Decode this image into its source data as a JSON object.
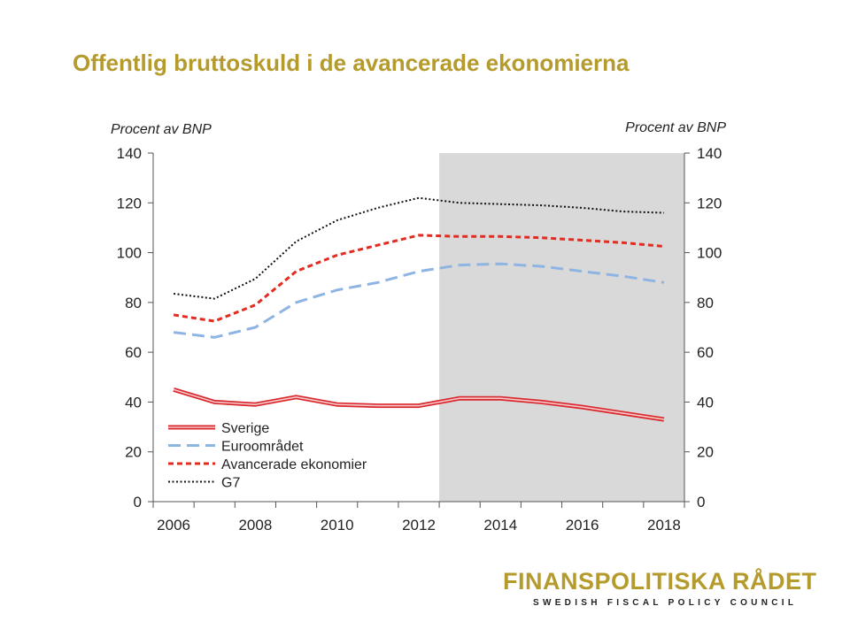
{
  "slide": {
    "title": "Offentlig bruttoskuld i de avancerade ekonomierna"
  },
  "logo": {
    "name": "FINANSPOLITISKA RÅDET",
    "subtitle": "SWEDISH FISCAL POLICY COUNCIL"
  },
  "colors": {
    "title": "#b59a2c",
    "forecast_shade": "#d9d9d9",
    "sverige": "#d9282e",
    "euro": "#8eb4e3",
    "advanced": "#e32b20",
    "g7": "#111111"
  },
  "chart_data": {
    "type": "line",
    "title": "",
    "ylabel_left": "Procent av BNP",
    "ylabel_right": "Procent av BNP",
    "ylim": [
      0,
      140
    ],
    "yticks": [
      0,
      20,
      40,
      60,
      80,
      100,
      120,
      140
    ],
    "x": [
      2006,
      2007,
      2008,
      2009,
      2010,
      2011,
      2012,
      2013,
      2014,
      2015,
      2016,
      2017,
      2018
    ],
    "xticks": [
      "2006",
      "2008",
      "2010",
      "2012",
      "2014",
      "2016",
      "2018"
    ],
    "forecast_shading": {
      "from": 2012.5,
      "to": 2018.5
    },
    "legend_position": "lower-left",
    "series": [
      {
        "name": "Sverige",
        "style": "double-solid",
        "color_key": "sverige",
        "values": [
          45,
          40,
          39,
          42,
          39,
          38.5,
          38.5,
          41.5,
          41.5,
          40,
          38,
          35.5,
          33
        ]
      },
      {
        "name": "Euroområdet",
        "style": "long-dash",
        "color_key": "euro",
        "values": [
          68,
          66,
          70,
          80,
          85,
          88,
          92.5,
          95,
          95.5,
          94.5,
          92.5,
          90.5,
          88
        ]
      },
      {
        "name": "Avancerade ekonomier",
        "style": "short-dash",
        "color_key": "advanced",
        "values": [
          75,
          72.5,
          79,
          92.5,
          99,
          103,
          107,
          106.5,
          106.5,
          106,
          105,
          104,
          102.5
        ]
      },
      {
        "name": "G7",
        "style": "dotted",
        "color_key": "g7",
        "values": [
          83.5,
          81.5,
          89.5,
          104.5,
          113,
          118,
          122,
          120,
          119.5,
          119,
          118,
          116.5,
          116
        ]
      }
    ]
  }
}
